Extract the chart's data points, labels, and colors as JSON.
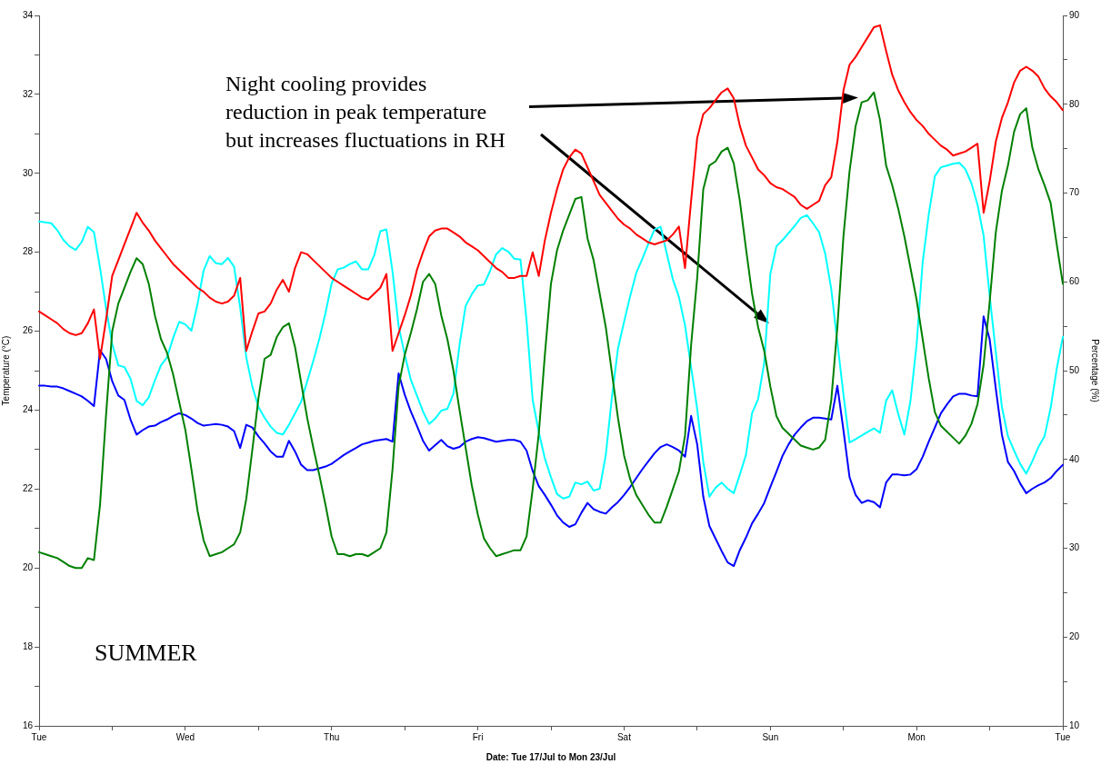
{
  "chart_data": {
    "type": "line",
    "xlabel": "Date: Tue 17/Jul to Mon 23/Jul",
    "ylabel": "Temperature (°C)",
    "y2label": "Percentage (%)",
    "annotations": [
      "Night cooling provides reduction in peak temperature but increases fluctuations in RH",
      "SUMMER"
    ],
    "categories": [
      "Tue",
      null,
      null,
      null,
      null,
      null,
      null,
      null,
      null,
      null,
      null,
      null,
      null,
      null,
      null,
      null,
      null,
      null,
      null,
      null,
      null,
      null,
      null,
      null,
      "Wed",
      null,
      null,
      null,
      null,
      null,
      null,
      null,
      null,
      null,
      null,
      null,
      null,
      null,
      null,
      null,
      null,
      null,
      null,
      null,
      null,
      null,
      null,
      null,
      "Thu",
      null,
      null,
      null,
      null,
      null,
      null,
      null,
      null,
      null,
      null,
      null,
      null,
      null,
      null,
      null,
      null,
      null,
      null,
      null,
      null,
      null,
      null,
      null,
      "Fri",
      null,
      null,
      null,
      null,
      null,
      null,
      null,
      null,
      null,
      null,
      null,
      null,
      null,
      null,
      null,
      null,
      null,
      null,
      null,
      null,
      null,
      null,
      null,
      "Sat",
      null,
      null,
      null,
      null,
      null,
      null,
      null,
      null,
      null,
      null,
      null,
      null,
      null,
      null,
      null,
      null,
      null,
      null,
      null,
      null,
      null,
      null,
      null,
      "Sun",
      null,
      null,
      null,
      null,
      null,
      null,
      null,
      null,
      null,
      null,
      null,
      null,
      null,
      null,
      null,
      null,
      null,
      null,
      null,
      null,
      null,
      null,
      null,
      "Mon",
      null,
      null,
      null,
      null,
      null,
      null,
      null,
      null,
      null,
      null,
      null,
      null,
      null,
      null,
      null,
      null,
      null,
      null,
      null,
      null,
      null,
      null,
      null,
      "Tue"
    ],
    "ylim": [
      16,
      34
    ],
    "yticks": [
      16,
      {
        "value": 17,
        "label": null
      },
      18,
      {
        "value": 19,
        "label": null
      },
      20,
      {
        "value": 21,
        "label": null
      },
      22,
      {
        "value": 23,
        "label": null
      },
      24,
      {
        "value": 25,
        "label": null
      },
      26,
      {
        "value": 27,
        "label": null
      },
      28,
      {
        "value": 29,
        "label": null
      },
      30,
      {
        "value": 31,
        "label": null
      },
      32,
      {
        "value": 33,
        "label": null
      },
      34
    ],
    "y2lim": [
      10,
      90
    ],
    "y2ticks": [
      10,
      {
        "value": 15,
        "label": null
      },
      20,
      {
        "value": 25,
        "label": null
      },
      30,
      {
        "value": 35,
        "label": null
      },
      40,
      {
        "value": 45,
        "label": null
      },
      50,
      {
        "value": 55,
        "label": null
      },
      60,
      {
        "value": 65,
        "label": null
      },
      70,
      {
        "value": 75,
        "label": null
      },
      80,
      {
        "value": 85,
        "label": null
      },
      90
    ],
    "grid": false,
    "legend": false,
    "marker": "none",
    "line_style": "solid",
    "series": [
      {
        "color": "#ff0000",
        "values": [
          26.5,
          26.4,
          26.3,
          26.2,
          26.05,
          25.95,
          25.9,
          25.95,
          26.2,
          26.55,
          25.3,
          26.3,
          27.4,
          27.8,
          28.2,
          28.6,
          29.0,
          28.75,
          28.55,
          28.3,
          28.1,
          27.9,
          27.7,
          27.55,
          27.4,
          27.25,
          27.1,
          27.0,
          26.85,
          26.75,
          26.7,
          26.75,
          26.9,
          27.35,
          25.5,
          26.0,
          26.45,
          26.5,
          26.7,
          27.05,
          27.3,
          27.0,
          27.6,
          28.0,
          27.95,
          27.8,
          27.65,
          27.5,
          27.35,
          27.25,
          27.15,
          27.05,
          26.95,
          26.85,
          26.8,
          26.95,
          27.1,
          27.45,
          25.5,
          25.95,
          26.4,
          26.9,
          27.55,
          28.0,
          28.4,
          28.55,
          28.6,
          28.6,
          28.5,
          28.4,
          28.25,
          28.15,
          28.05,
          27.9,
          27.75,
          27.6,
          27.5,
          27.35,
          27.35,
          27.4,
          27.4,
          28.0,
          27.4,
          28.3,
          29.0,
          29.6,
          30.1,
          30.4,
          30.6,
          30.5,
          30.15,
          29.8,
          29.45,
          29.25,
          29.05,
          28.85,
          28.7,
          28.6,
          28.45,
          28.35,
          28.25,
          28.2,
          28.25,
          28.3,
          28.45,
          28.65,
          27.6,
          29.3,
          30.9,
          31.5,
          31.65,
          31.85,
          32.05,
          32.15,
          31.9,
          31.2,
          30.7,
          30.4,
          30.1,
          29.95,
          29.75,
          29.65,
          29.6,
          29.5,
          29.4,
          29.2,
          29.1,
          29.2,
          29.3,
          29.7,
          29.9,
          30.8,
          32.1,
          32.75,
          32.95,
          33.2,
          33.45,
          33.7,
          33.75,
          33.1,
          32.5,
          32.1,
          31.8,
          31.55,
          31.35,
          31.2,
          31.0,
          30.85,
          30.7,
          30.6,
          30.45,
          30.5,
          30.55,
          30.65,
          30.75,
          29.0,
          29.8,
          30.8,
          31.4,
          31.8,
          32.3,
          32.6,
          32.7,
          32.6,
          32.45,
          32.15,
          31.95,
          31.8,
          31.6
        ]
      },
      {
        "color": "#008000",
        "values": [
          20.4,
          20.35,
          20.3,
          20.25,
          20.15,
          20.05,
          20.0,
          20.0,
          20.25,
          20.2,
          21.6,
          23.9,
          26.0,
          26.7,
          27.1,
          27.5,
          27.85,
          27.7,
          27.2,
          26.4,
          25.8,
          25.45,
          24.9,
          24.2,
          23.5,
          22.5,
          21.45,
          20.7,
          20.3,
          20.35,
          20.4,
          20.5,
          20.6,
          20.9,
          21.75,
          23.0,
          24.3,
          25.3,
          25.4,
          25.85,
          26.1,
          26.2,
          25.6,
          24.7,
          23.8,
          23.05,
          22.35,
          21.6,
          20.8,
          20.35,
          20.35,
          20.3,
          20.35,
          20.35,
          20.3,
          20.4,
          20.5,
          20.9,
          22.5,
          24.6,
          25.4,
          25.95,
          26.55,
          27.25,
          27.45,
          27.2,
          26.4,
          25.8,
          25.0,
          24.0,
          23.05,
          22.1,
          21.35,
          20.75,
          20.5,
          20.3,
          20.35,
          20.4,
          20.45,
          20.45,
          20.8,
          22.0,
          23.4,
          25.4,
          27.2,
          28.05,
          28.55,
          28.95,
          29.35,
          29.4,
          28.35,
          27.8,
          26.95,
          26.1,
          24.95,
          23.8,
          22.85,
          22.25,
          21.85,
          21.6,
          21.35,
          21.15,
          21.15,
          21.55,
          22.0,
          22.45,
          23.35,
          25.65,
          27.35,
          29.6,
          30.2,
          30.3,
          30.55,
          30.65,
          30.25,
          29.3,
          28.1,
          26.95,
          26.1,
          25.5,
          24.6,
          23.85,
          23.55,
          23.4,
          23.25,
          23.1,
          23.05,
          23.0,
          23.05,
          23.25,
          24.25,
          26.1,
          28.4,
          30.05,
          31.2,
          31.8,
          31.85,
          32.05,
          31.35,
          30.2,
          29.7,
          29.1,
          28.4,
          27.6,
          26.8,
          25.8,
          24.8,
          23.95,
          23.6,
          23.45,
          23.3,
          23.15,
          23.35,
          23.65,
          24.15,
          25.15,
          26.75,
          28.5,
          29.55,
          30.2,
          31.05,
          31.5,
          31.65,
          30.65,
          30.1,
          29.7,
          29.25,
          28.2,
          27.2
        ]
      },
      {
        "color": "#00ffff",
        "axis": "y2",
        "values": [
          66.8,
          66.7,
          66.6,
          65.8,
          64.7,
          64.0,
          63.6,
          64.5,
          66.2,
          65.6,
          61.6,
          57.0,
          53.0,
          50.6,
          50.4,
          49.1,
          46.6,
          46.1,
          47.0,
          48.9,
          50.6,
          51.5,
          53.7,
          55.5,
          55.2,
          54.5,
          57.5,
          61.3,
          62.9,
          62.1,
          62.0,
          62.7,
          61.7,
          57.1,
          51.5,
          48.2,
          45.9,
          44.7,
          43.7,
          43.0,
          42.8,
          43.9,
          45.2,
          46.5,
          48.8,
          51.1,
          53.6,
          56.5,
          59.8,
          61.4,
          61.6,
          62.0,
          62.3,
          61.4,
          61.4,
          63.0,
          65.7,
          65.9,
          61.2,
          55.0,
          51.8,
          49.0,
          47.2,
          45.4,
          44.0,
          44.6,
          45.5,
          45.7,
          47.4,
          52.9,
          57.3,
          58.6,
          59.6,
          59.7,
          61.2,
          63.1,
          63.8,
          63.4,
          62.6,
          62.5,
          55.6,
          46.7,
          43.1,
          40.1,
          38.0,
          36.1,
          35.6,
          35.8,
          37.4,
          37.2,
          37.5,
          36.5,
          36.7,
          40.5,
          47.0,
          52.5,
          55.5,
          58.4,
          61.0,
          62.6,
          64.3,
          65.9,
          66.2,
          63.2,
          60.3,
          58.3,
          55.1,
          50.4,
          45.7,
          39.7,
          35.8,
          36.8,
          37.4,
          36.7,
          36.2,
          38.3,
          40.5,
          45.2,
          46.8,
          50.9,
          60.9,
          64.0,
          64.7,
          65.5,
          66.3,
          67.2,
          67.5,
          66.6,
          65.6,
          63.2,
          59.2,
          53.2,
          47.3,
          41.9,
          42.3,
          42.7,
          43.1,
          43.5,
          43.0,
          46.6,
          47.8,
          45.1,
          42.8,
          46.6,
          52.9,
          62.2,
          67.6,
          71.9,
          72.9,
          73.1,
          73.3,
          73.4,
          72.7,
          71.1,
          68.7,
          65.2,
          58.4,
          52.1,
          45.9,
          42.6,
          41.0,
          39.5,
          38.4,
          39.8,
          41.4,
          42.6,
          45.8,
          50.2,
          53.8
        ]
      },
      {
        "color": "#0000ff",
        "axis": "y2",
        "values": [
          48.3,
          48.3,
          48.2,
          48.2,
          48.0,
          47.7,
          47.4,
          47.1,
          46.6,
          46.0,
          52.3,
          51.3,
          48.8,
          47.2,
          46.7,
          44.5,
          42.8,
          43.3,
          43.7,
          43.8,
          44.2,
          44.5,
          44.9,
          45.2,
          45.0,
          44.6,
          44.1,
          43.8,
          43.9,
          44.0,
          43.9,
          43.7,
          43.2,
          41.3,
          43.9,
          43.6,
          42.6,
          41.8,
          40.9,
          40.3,
          40.3,
          42.1,
          40.9,
          39.4,
          38.8,
          38.8,
          39.0,
          39.2,
          39.5,
          40.0,
          40.5,
          40.9,
          41.3,
          41.7,
          41.9,
          42.1,
          42.2,
          42.3,
          42.0,
          49.7,
          47.3,
          45.4,
          43.8,
          42.1,
          41.0,
          41.6,
          42.2,
          41.5,
          41.2,
          41.4,
          42.0,
          42.3,
          42.5,
          42.4,
          42.2,
          42.0,
          42.1,
          42.2,
          42.2,
          42.0,
          41.0,
          38.7,
          37.0,
          36.0,
          34.9,
          33.7,
          32.9,
          32.4,
          32.7,
          34.0,
          35.1,
          34.4,
          34.1,
          33.9,
          34.6,
          35.2,
          36.0,
          36.9,
          37.9,
          38.9,
          39.8,
          40.7,
          41.4,
          41.7,
          41.4,
          41.0,
          40.3,
          44.9,
          41.7,
          35.8,
          32.5,
          31.1,
          29.7,
          28.4,
          28.0,
          29.8,
          31.2,
          32.8,
          33.9,
          35.1,
          36.9,
          38.6,
          40.4,
          41.7,
          42.8,
          43.6,
          44.3,
          44.7,
          44.7,
          44.6,
          44.5,
          48.3,
          43.3,
          38.0,
          36.0,
          35.1,
          35.4,
          35.2,
          34.6,
          37.4,
          38.3,
          38.3,
          38.2,
          38.3,
          38.9,
          40.3,
          42.0,
          43.6,
          45.2,
          46.2,
          47.1,
          47.4,
          47.4,
          47.2,
          47.1,
          56.1,
          53.5,
          48.0,
          42.8,
          39.7,
          38.7,
          37.3,
          36.2,
          36.7,
          37.1,
          37.4,
          37.9,
          38.7,
          39.4
        ]
      }
    ]
  }
}
